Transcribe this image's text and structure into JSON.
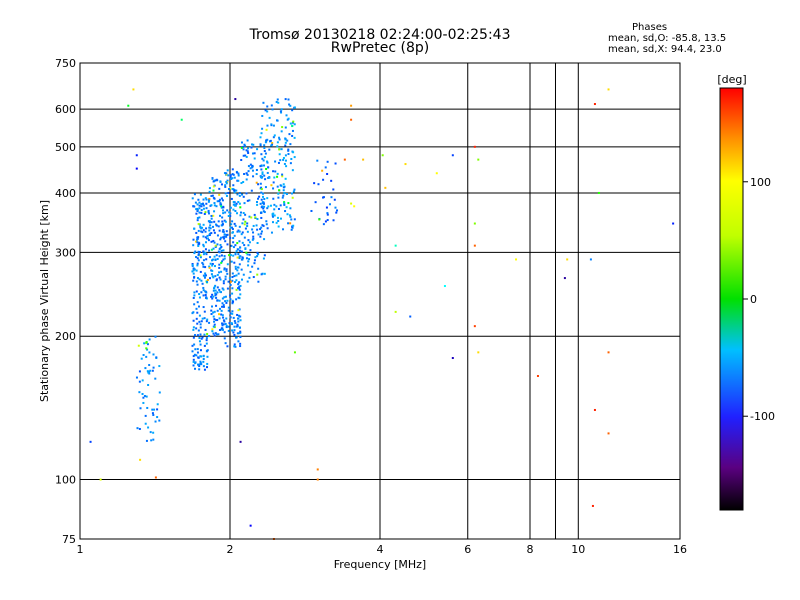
{
  "header": {
    "title_line1": "Tromsø 20130218 02:24:00-02:25:43",
    "title_line2": "RwPretec (8p)",
    "stats_heading": "Phases",
    "stats_o": "mean, sd,O: -85.8, 13.5",
    "stats_x": "mean, sd,X: 94.4, 23.0"
  },
  "colorbar": {
    "label": "[deg]",
    "range": [
      -180,
      180
    ],
    "tick_labels": [
      "100",
      "0",
      "-100"
    ],
    "tick_values": [
      100,
      0,
      -100
    ]
  },
  "chart_data": {
    "type": "scatter",
    "xlabel": "Frequency [MHz]",
    "ylabel": "Stationary phase Virtual Height [km]",
    "x_scale": "log",
    "y_scale": "log",
    "xlim": [
      1,
      16
    ],
    "ylim": [
      75,
      750
    ],
    "x_ticks": [
      1,
      2,
      4,
      6,
      8,
      10,
      16
    ],
    "x_tick_labels": [
      "1",
      "2",
      "4",
      "6",
      "8",
      "10",
      "16"
    ],
    "x_minor_ticks": [
      9
    ],
    "y_ticks": [
      75,
      100,
      200,
      300,
      400,
      500,
      600,
      750
    ],
    "y_tick_labels": [
      "75",
      "100",
      "200",
      "300",
      "400",
      "500",
      "600",
      "750"
    ],
    "grid": true,
    "color_scale": "rainbow phase (deg)",
    "series": [
      {
        "clusters": [
          {
            "x_range": [
              1.3,
              1.45
            ],
            "y_range": [
              120,
              200
            ],
            "phase": -100,
            "count": 60
          },
          {
            "x_range": [
              1.68,
              1.82
            ],
            "y_range": [
              170,
              400
            ],
            "phase": -100,
            "count": 240
          },
          {
            "x_range": [
              1.82,
              1.95
            ],
            "y_range": [
              200,
              430
            ],
            "phase": -100,
            "count": 200
          },
          {
            "x_range": [
              1.95,
              2.1
            ],
            "y_range": [
              190,
              450
            ],
            "phase": -100,
            "count": 220
          },
          {
            "x_range": [
              2.1,
              2.35
            ],
            "y_range": [
              260,
              520
            ],
            "phase": -100,
            "count": 160
          },
          {
            "x_range": [
              2.3,
              2.7
            ],
            "y_range": [
              330,
              630
            ],
            "phase": -95,
            "count": 200
          },
          {
            "x_range": [
              2.9,
              3.3
            ],
            "y_range": [
              340,
              470
            ],
            "phase": -110,
            "count": 30
          }
        ],
        "points": [
          {
            "x": 1.05,
            "y": 120,
            "p": -120
          },
          {
            "x": 1.1,
            "y": 100,
            "p": 90
          },
          {
            "x": 1.25,
            "y": 610,
            "p": 10
          },
          {
            "x": 1.28,
            "y": 660,
            "p": 110
          },
          {
            "x": 1.3,
            "y": 480,
            "p": -130
          },
          {
            "x": 1.3,
            "y": 450,
            "p": -140
          },
          {
            "x": 1.42,
            "y": 101,
            "p": 150
          },
          {
            "x": 1.32,
            "y": 110,
            "p": 110
          },
          {
            "x": 1.6,
            "y": 570,
            "p": -10
          },
          {
            "x": 2.05,
            "y": 630,
            "p": -160
          },
          {
            "x": 2.1,
            "y": 120,
            "p": -160
          },
          {
            "x": 2.2,
            "y": 80,
            "p": -140
          },
          {
            "x": 2.45,
            "y": 75,
            "p": 150
          },
          {
            "x": 2.7,
            "y": 185,
            "p": 50
          },
          {
            "x": 3.0,
            "y": 105,
            "p": 140
          },
          {
            "x": 3.0,
            "y": 100,
            "p": 140
          },
          {
            "x": 3.5,
            "y": 610,
            "p": 130
          },
          {
            "x": 3.5,
            "y": 570,
            "p": 150
          },
          {
            "x": 3.5,
            "y": 380,
            "p": 90
          },
          {
            "x": 3.55,
            "y": 375,
            "p": 100
          },
          {
            "x": 3.4,
            "y": 470,
            "p": 150
          },
          {
            "x": 3.7,
            "y": 470,
            "p": 120
          },
          {
            "x": 4.05,
            "y": 480,
            "p": 60
          },
          {
            "x": 4.1,
            "y": 410,
            "p": 120
          },
          {
            "x": 4.3,
            "y": 310,
            "p": -40
          },
          {
            "x": 4.5,
            "y": 460,
            "p": 110
          },
          {
            "x": 4.6,
            "y": 220,
            "p": -110
          },
          {
            "x": 4.3,
            "y": 225,
            "p": 80
          },
          {
            "x": 5.2,
            "y": 440,
            "p": 100
          },
          {
            "x": 5.6,
            "y": 480,
            "p": -120
          },
          {
            "x": 5.4,
            "y": 255,
            "p": -60
          },
          {
            "x": 5.6,
            "y": 180,
            "p": -150
          },
          {
            "x": 6.2,
            "y": 500,
            "p": 170
          },
          {
            "x": 6.3,
            "y": 470,
            "p": 60
          },
          {
            "x": 6.2,
            "y": 345,
            "p": 60
          },
          {
            "x": 6.2,
            "y": 310,
            "p": 150
          },
          {
            "x": 6.2,
            "y": 210,
            "p": 160
          },
          {
            "x": 6.3,
            "y": 185,
            "p": 110
          },
          {
            "x": 7.5,
            "y": 290,
            "p": 100
          },
          {
            "x": 8.3,
            "y": 165,
            "p": 160
          },
          {
            "x": 9.5,
            "y": 290,
            "p": 110
          },
          {
            "x": 9.4,
            "y": 265,
            "p": -160
          },
          {
            "x": 10.6,
            "y": 290,
            "p": -100
          },
          {
            "x": 10.8,
            "y": 140,
            "p": 170
          },
          {
            "x": 10.7,
            "y": 88,
            "p": 170
          },
          {
            "x": 10.8,
            "y": 615,
            "p": 170
          },
          {
            "x": 11.5,
            "y": 660,
            "p": 110
          },
          {
            "x": 11.5,
            "y": 185,
            "p": 150
          },
          {
            "x": 11.5,
            "y": 125,
            "p": 150
          },
          {
            "x": 11.0,
            "y": 400,
            "p": 30
          },
          {
            "x": 15.5,
            "y": 345,
            "p": -130
          }
        ]
      }
    ]
  }
}
